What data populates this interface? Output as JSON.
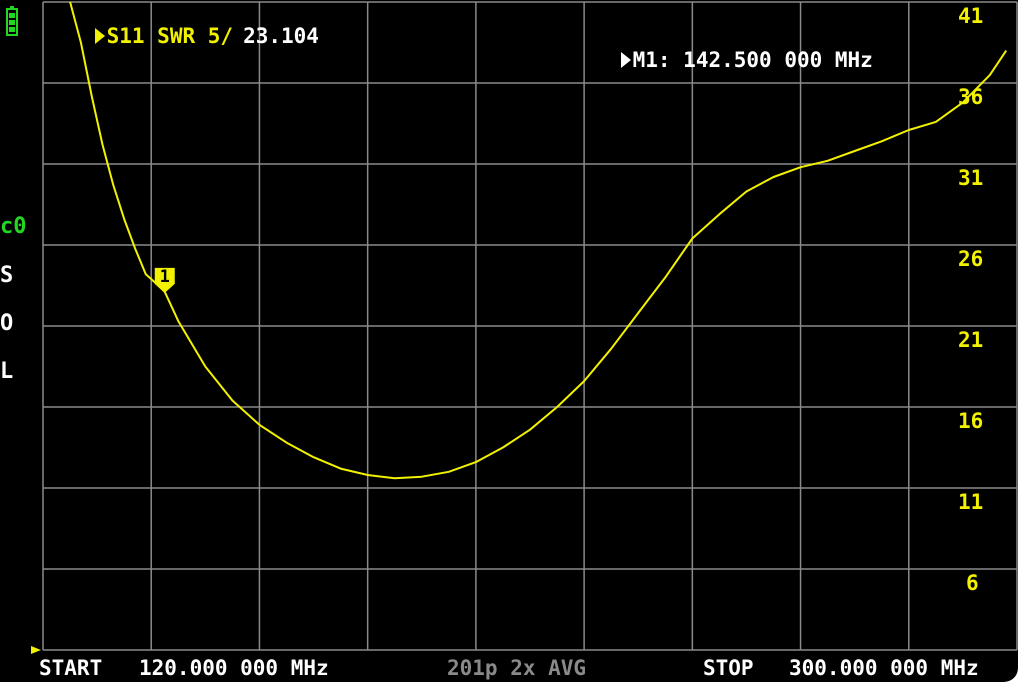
{
  "trace_header": {
    "channel": "S11",
    "format": "SWR",
    "scale": "5/",
    "value": "23.104"
  },
  "marker_readout": {
    "label": "M1:",
    "frequency": "142.500 000 MHz"
  },
  "marker": {
    "label": "1"
  },
  "calibration": {
    "label": "c0",
    "steps": [
      "S",
      "O",
      "L"
    ]
  },
  "y_ticks": [
    "41",
    "36",
    "31",
    "26",
    "21",
    "16",
    "11",
    "6"
  ],
  "footer": {
    "start_label": "START",
    "start_freq": "120.000 000 MHz",
    "sweep_info": "201p 2x AVG",
    "stop_label": "STOP",
    "stop_freq": "300.000 000 MHz"
  },
  "colors": {
    "trace": "#f2f200",
    "grid": "#8a8a8a",
    "background": "#000000",
    "calibration": "#22d622",
    "battery": "#22d622"
  },
  "chart_data": {
    "type": "line",
    "xlabel": "",
    "ylabel": "",
    "xlim": [
      120,
      300
    ],
    "ylim": [
      1,
      41
    ],
    "series": [
      {
        "name": "S11 SWR",
        "x": [
          125,
          127,
          129,
          131,
          133,
          135,
          137,
          139,
          141,
          142.5,
          145,
          150,
          155,
          160,
          165,
          170,
          175,
          180,
          185,
          190,
          195,
          200,
          205,
          210,
          215,
          220,
          225,
          230,
          235,
          240,
          245,
          250,
          255,
          260,
          265,
          270,
          275,
          280,
          285,
          290,
          295,
          298
        ],
        "y": [
          41,
          38.5,
          35.2,
          32.2,
          29.7,
          27.6,
          25.8,
          24.2,
          23.6,
          23.104,
          21.3,
          18.5,
          16.4,
          14.9,
          13.8,
          12.9,
          12.2,
          11.8,
          11.6,
          11.7,
          12,
          12.6,
          13.5,
          14.6,
          16,
          17.6,
          19.6,
          21.8,
          24,
          26.4,
          27.9,
          29.3,
          30.2,
          30.8,
          31.2,
          31.8,
          32.4,
          33.1,
          33.6,
          34.8,
          36.5,
          38
        ]
      }
    ]
  }
}
